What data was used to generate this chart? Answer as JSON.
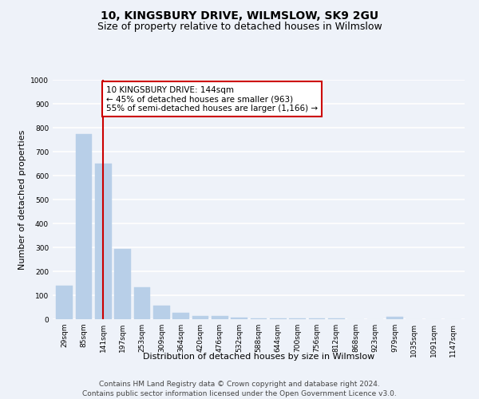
{
  "title": "10, KINGSBURY DRIVE, WILMSLOW, SK9 2GU",
  "subtitle": "Size of property relative to detached houses in Wilmslow",
  "xlabel": "Distribution of detached houses by size in Wilmslow",
  "ylabel": "Number of detached properties",
  "categories": [
    "29sqm",
    "85sqm",
    "141sqm",
    "197sqm",
    "253sqm",
    "309sqm",
    "364sqm",
    "420sqm",
    "476sqm",
    "532sqm",
    "588sqm",
    "644sqm",
    "700sqm",
    "756sqm",
    "812sqm",
    "868sqm",
    "923sqm",
    "979sqm",
    "1035sqm",
    "1091sqm",
    "1147sqm"
  ],
  "values": [
    140,
    775,
    650,
    295,
    133,
    58,
    28,
    15,
    15,
    8,
    5,
    5,
    5,
    5,
    5,
    0,
    0,
    10,
    0,
    0,
    0
  ],
  "bar_color": "#b8cfe8",
  "bar_edge_color": "#b8cfe8",
  "highlight_bar_index": 2,
  "highlight_line_color": "#cc0000",
  "annotation_text": "10 KINGSBURY DRIVE: 144sqm\n← 45% of detached houses are smaller (963)\n55% of semi-detached houses are larger (1,166) →",
  "annotation_box_color": "#ffffff",
  "annotation_box_edge_color": "#cc0000",
  "ylim": [
    0,
    1000
  ],
  "yticks": [
    0,
    100,
    200,
    300,
    400,
    500,
    600,
    700,
    800,
    900,
    1000
  ],
  "footer_line1": "Contains HM Land Registry data © Crown copyright and database right 2024.",
  "footer_line2": "Contains public sector information licensed under the Open Government Licence v3.0.",
  "bg_color": "#eef2f9",
  "plot_bg_color": "#eef2f9",
  "grid_color": "#ffffff",
  "title_fontsize": 10,
  "subtitle_fontsize": 9,
  "axis_label_fontsize": 8,
  "tick_fontsize": 6.5,
  "annotation_fontsize": 7.5,
  "footer_fontsize": 6.5
}
